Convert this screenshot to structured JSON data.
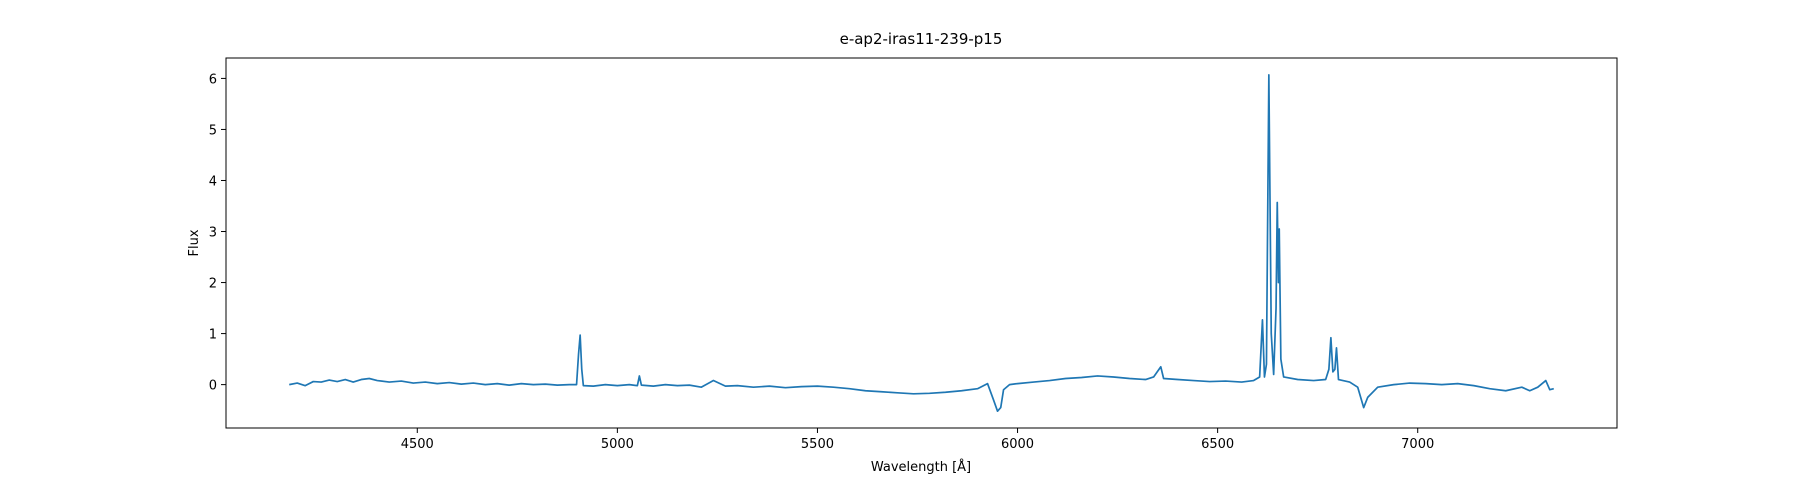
{
  "chart_data": {
    "type": "line",
    "title": "e-ap2-iras11-239-p15",
    "x_label": "Wavelength [Å]",
    "y_label": "Flux",
    "xlim": [
      4022,
      7498
    ],
    "ylim": [
      -0.85,
      6.4
    ],
    "xticks": [
      4500,
      5000,
      5500,
      6000,
      6500,
      7000
    ],
    "yticks": [
      0,
      1,
      2,
      3,
      4,
      5,
      6
    ],
    "grid": false,
    "series": [
      {
        "name": "Flux",
        "color": "#1f77b4",
        "x": [
          4180,
          4200,
          4220,
          4240,
          4260,
          4280,
          4300,
          4320,
          4340,
          4360,
          4380,
          4400,
          4430,
          4460,
          4490,
          4520,
          4550,
          4580,
          4610,
          4640,
          4670,
          4700,
          4730,
          4760,
          4790,
          4820,
          4850,
          4880,
          4898,
          4903,
          4907,
          4911,
          4915,
          4940,
          4970,
          5000,
          5030,
          5050,
          5055,
          5060,
          5090,
          5120,
          5150,
          5180,
          5210,
          5240,
          5270,
          5300,
          5340,
          5380,
          5420,
          5460,
          5500,
          5540,
          5580,
          5620,
          5660,
          5700,
          5740,
          5780,
          5820,
          5860,
          5900,
          5925,
          5940,
          5950,
          5958,
          5965,
          5980,
          6000,
          6040,
          6080,
          6120,
          6160,
          6200,
          6240,
          6280,
          6320,
          6340,
          6358,
          6365,
          6400,
          6440,
          6480,
          6520,
          6560,
          6590,
          6605,
          6612,
          6617,
          6622,
          6628,
          6634,
          6640,
          6646,
          6649,
          6652,
          6654,
          6658,
          6665,
          6700,
          6740,
          6770,
          6778,
          6783,
          6788,
          6793,
          6797,
          6802,
          6830,
          6850,
          6865,
          6875,
          6900,
          6940,
          6980,
          7020,
          7060,
          7100,
          7140,
          7180,
          7220,
          7260,
          7280,
          7300,
          7320,
          7330,
          7340
        ],
        "values": [
          0.0,
          0.03,
          -0.02,
          0.06,
          0.05,
          0.09,
          0.06,
          0.1,
          0.05,
          0.1,
          0.12,
          0.08,
          0.05,
          0.07,
          0.03,
          0.05,
          0.02,
          0.04,
          0.01,
          0.03,
          0.0,
          0.02,
          -0.01,
          0.02,
          0.0,
          0.01,
          -0.01,
          0.0,
          0.0,
          0.6,
          0.97,
          0.3,
          -0.02,
          -0.03,
          0.0,
          -0.02,
          0.0,
          -0.02,
          0.17,
          -0.01,
          -0.03,
          0.0,
          -0.02,
          -0.01,
          -0.05,
          0.08,
          -0.03,
          -0.02,
          -0.05,
          -0.03,
          -0.06,
          -0.04,
          -0.03,
          -0.05,
          -0.08,
          -0.12,
          -0.14,
          -0.16,
          -0.18,
          -0.17,
          -0.15,
          -0.12,
          -0.08,
          0.02,
          -0.3,
          -0.52,
          -0.45,
          -0.1,
          0.0,
          0.02,
          0.05,
          0.08,
          0.12,
          0.14,
          0.17,
          0.15,
          0.12,
          0.1,
          0.15,
          0.35,
          0.12,
          0.1,
          0.08,
          0.06,
          0.07,
          0.05,
          0.08,
          0.15,
          1.27,
          0.15,
          0.4,
          6.07,
          1.0,
          0.2,
          1.5,
          3.57,
          2.0,
          3.05,
          0.5,
          0.15,
          0.1,
          0.08,
          0.1,
          0.3,
          0.92,
          0.25,
          0.3,
          0.72,
          0.1,
          0.05,
          -0.05,
          -0.45,
          -0.25,
          -0.05,
          0.0,
          0.03,
          0.02,
          0.0,
          0.02,
          -0.02,
          -0.08,
          -0.12,
          -0.05,
          -0.12,
          -0.05,
          0.08,
          -0.1,
          -0.08
        ]
      }
    ]
  }
}
